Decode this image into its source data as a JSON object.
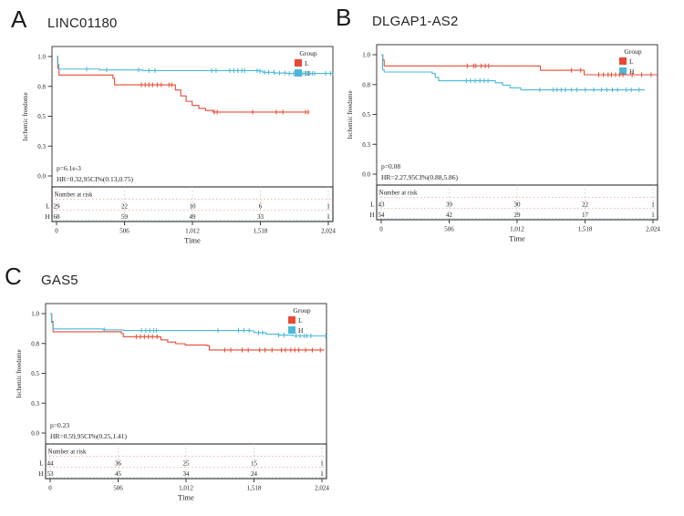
{
  "page": {
    "background": "#ffffff"
  },
  "chart_data": [
    {
      "type": "line",
      "subtype": "kaplan-meier",
      "letter": "A",
      "title": "LINC01180",
      "p_label": "p=6.1e-3",
      "hr_label": "HR=0.32,95CI%(0.13,0.75)",
      "xlabel": "Time",
      "ylabel": "Ischemic freedome",
      "xlim": [
        0,
        2024
      ],
      "ylim": [
        0,
        1.0
      ],
      "x_tick_values": [
        0,
        506,
        1012,
        1518,
        2024
      ],
      "x_tick_labels": [
        "0",
        "506",
        "1,012",
        "1,518",
        "2,024"
      ],
      "y_tick_values": [
        0,
        0.25,
        0.5,
        0.75,
        1
      ],
      "y_tick_labels": [
        "0.0",
        "0.3",
        "0.5",
        "0.8",
        "1.0"
      ],
      "legend": {
        "title": "Group",
        "entries": [
          {
            "name": "L",
            "color": "#e84a35"
          },
          {
            "name": "H",
            "color": "#4ab8d8"
          }
        ]
      },
      "series": [
        {
          "name": "L",
          "color": "#e84a35",
          "steps": [
            [
              0,
              1
            ],
            [
              10,
              0.9
            ],
            [
              18,
              0.845
            ],
            [
              420,
              0.818
            ],
            [
              432,
              0.763
            ],
            [
              868,
              0.763
            ],
            [
              885,
              0.72
            ],
            [
              925,
              0.67
            ],
            [
              965,
              0.625
            ],
            [
              1010,
              0.59
            ],
            [
              1060,
              0.565
            ],
            [
              1110,
              0.548
            ],
            [
              1165,
              0.535
            ],
            [
              1880,
              0.535
            ]
          ],
          "censors": [
            632,
            660,
            688,
            715,
            750,
            780,
            838,
            858,
            1175,
            1196,
            1460,
            1637,
            1685,
            1855,
            1875
          ]
        },
        {
          "name": "H",
          "color": "#4ab8d8",
          "steps": [
            [
              0,
              1
            ],
            [
              8,
              0.935
            ],
            [
              18,
              0.895
            ],
            [
              320,
              0.888
            ],
            [
              640,
              0.882
            ],
            [
              1510,
              0.878
            ],
            [
              1535,
              0.868
            ],
            [
              1625,
              0.862
            ],
            [
              1715,
              0.858
            ],
            [
              2058,
              0.852
            ]
          ],
          "censors": [
            224,
            373,
            611,
            688,
            733,
            1155,
            1188,
            1290,
            1320,
            1350,
            1380,
            1400,
            1494,
            1515,
            1550,
            1580,
            1620,
            1660,
            1700,
            1733,
            1766,
            1834,
            1852,
            1870,
            1888,
            1906,
            1922,
            2004,
            2040
          ]
        }
      ],
      "risk_table": {
        "header": "Number at risk",
        "time_points": [
          0,
          506,
          1012,
          1518,
          2024
        ],
        "rows": [
          {
            "label": "L",
            "color": "#e84a35",
            "values": [
              "29",
              "22",
              "10",
              "6",
              "1"
            ]
          },
          {
            "label": "H",
            "color": "#4ab8d8",
            "values": [
              "68",
              "59",
              "49",
              "33",
              "1"
            ]
          }
        ]
      }
    },
    {
      "type": "line",
      "subtype": "kaplan-meier",
      "letter": "B",
      "title": "DLGAP1-AS2",
      "p_label": "p=0.08",
      "hr_label": "HR=2.27,95CI%(0.88,5.86)",
      "xlabel": "Time",
      "ylabel": "Ischemic freedome",
      "xlim": [
        0,
        2024
      ],
      "ylim": [
        0,
        1.0
      ],
      "x_tick_values": [
        0,
        506,
        1012,
        1518,
        2024
      ],
      "x_tick_labels": [
        "0",
        "506",
        "1,012",
        "1,518",
        "2,024"
      ],
      "y_tick_values": [
        0,
        0.25,
        0.5,
        0.75,
        1
      ],
      "y_tick_labels": [
        "0.0",
        "0.3",
        "0.5",
        "0.8",
        "1.0"
      ],
      "legend": {
        "title": "Group",
        "entries": [
          {
            "name": "L",
            "color": "#e84a35"
          },
          {
            "name": "H",
            "color": "#4ab8d8"
          }
        ]
      },
      "series": [
        {
          "name": "L",
          "color": "#e84a35",
          "steps": [
            [
              0,
              1
            ],
            [
              12,
              0.955
            ],
            [
              22,
              0.906
            ],
            [
              1170,
              0.906
            ],
            [
              1185,
              0.87
            ],
            [
              1498,
              0.87
            ],
            [
              1512,
              0.832
            ],
            [
              2058,
              0.832
            ]
          ],
          "censors": [
            641,
            690,
            705,
            745,
            775,
            800,
            1417,
            1485,
            1620,
            1655,
            1690,
            1715,
            1745,
            1775,
            1800,
            1869,
            1940,
            2010
          ]
        },
        {
          "name": "H",
          "color": "#4ab8d8",
          "steps": [
            [
              0,
              1
            ],
            [
              10,
              0.875
            ],
            [
              22,
              0.855
            ],
            [
              380,
              0.842
            ],
            [
              402,
              0.81
            ],
            [
              428,
              0.782
            ],
            [
              788,
              0.782
            ],
            [
              850,
              0.765
            ],
            [
              905,
              0.745
            ],
            [
              960,
              0.723
            ],
            [
              1040,
              0.706
            ],
            [
              1960,
              0.7
            ]
          ],
          "censors": [
            634,
            665,
            700,
            735,
            768,
            795,
            1181,
            1282,
            1309,
            1340,
            1372,
            1417,
            1458,
            1520,
            1583,
            1640,
            1680,
            1722,
            1760,
            1825,
            1862,
            1920
          ]
        }
      ],
      "risk_table": {
        "header": "Number at risk",
        "time_points": [
          0,
          506,
          1012,
          1518,
          2024
        ],
        "rows": [
          {
            "label": "L",
            "color": "#e84a35",
            "values": [
              "43",
              "39",
              "30",
              "22",
              "1"
            ]
          },
          {
            "label": "H",
            "color": "#4ab8d8",
            "values": [
              "54",
              "42",
              "29",
              "17",
              "1"
            ]
          }
        ]
      }
    },
    {
      "type": "line",
      "subtype": "kaplan-meier",
      "letter": "C",
      "title": "GAS5",
      "p_label": "p=0.23",
      "hr_label": "HR=0.59,95CI%(0.25,1.41)",
      "xlabel": "Time",
      "ylabel": "Ischemic freedome",
      "xlim": [
        0,
        2024
      ],
      "ylim": [
        0,
        1.0
      ],
      "x_tick_values": [
        0,
        506,
        1012,
        1518,
        2024
      ],
      "x_tick_labels": [
        "0",
        "506",
        "1,012",
        "1,518",
        "2,024"
      ],
      "y_tick_values": [
        0,
        0.25,
        0.5,
        0.75,
        1
      ],
      "y_tick_labels": [
        "0.0",
        "0.3",
        "0.5",
        "0.8",
        "1.0"
      ],
      "legend": {
        "title": "Group",
        "entries": [
          {
            "name": "L",
            "color": "#e84a35"
          },
          {
            "name": "H",
            "color": "#4ab8d8"
          }
        ]
      },
      "series": [
        {
          "name": "L",
          "color": "#e84a35",
          "steps": [
            [
              0,
              1
            ],
            [
              12,
              0.935
            ],
            [
              22,
              0.848
            ],
            [
              530,
              0.833
            ],
            [
              545,
              0.807
            ],
            [
              805,
              0.805
            ],
            [
              825,
              0.78
            ],
            [
              875,
              0.762
            ],
            [
              935,
              0.748
            ],
            [
              1005,
              0.737
            ],
            [
              1168,
              0.732
            ],
            [
              1185,
              0.695
            ],
            [
              2040,
              0.693
            ]
          ],
          "censors": [
            641,
            672,
            702,
            732,
            762,
            796,
            1300,
            1345,
            1430,
            1475,
            1560,
            1600,
            1652,
            1722,
            1752,
            1792,
            1822,
            1852,
            1902,
            1952,
            2012
          ]
        },
        {
          "name": "H",
          "color": "#4ab8d8",
          "steps": [
            [
              0,
              1
            ],
            [
              10,
              0.925
            ],
            [
              20,
              0.872
            ],
            [
              395,
              0.863
            ],
            [
              545,
              0.858
            ],
            [
              1495,
              0.855
            ],
            [
              1520,
              0.84
            ],
            [
              1608,
              0.828
            ],
            [
              1700,
              0.82
            ],
            [
              1808,
              0.814
            ],
            [
              2058,
              0.81
            ]
          ],
          "censors": [
            405,
            680,
            712,
            742,
            772,
            792,
            1250,
            1402,
            1442,
            1482,
            1552,
            1582,
            1702,
            1742,
            1832,
            1862,
            1892,
            1912,
            1942,
            2052
          ]
        }
      ],
      "risk_table": {
        "header": "Number at risk",
        "time_points": [
          0,
          506,
          1012,
          1518,
          2024
        ],
        "rows": [
          {
            "label": "L",
            "color": "#e84a35",
            "values": [
              "44",
              "36",
              "25",
              "15",
              "1"
            ]
          },
          {
            "label": "H",
            "color": "#4ab8d8",
            "values": [
              "53",
              "45",
              "34",
              "24",
              "1"
            ]
          }
        ]
      }
    }
  ]
}
